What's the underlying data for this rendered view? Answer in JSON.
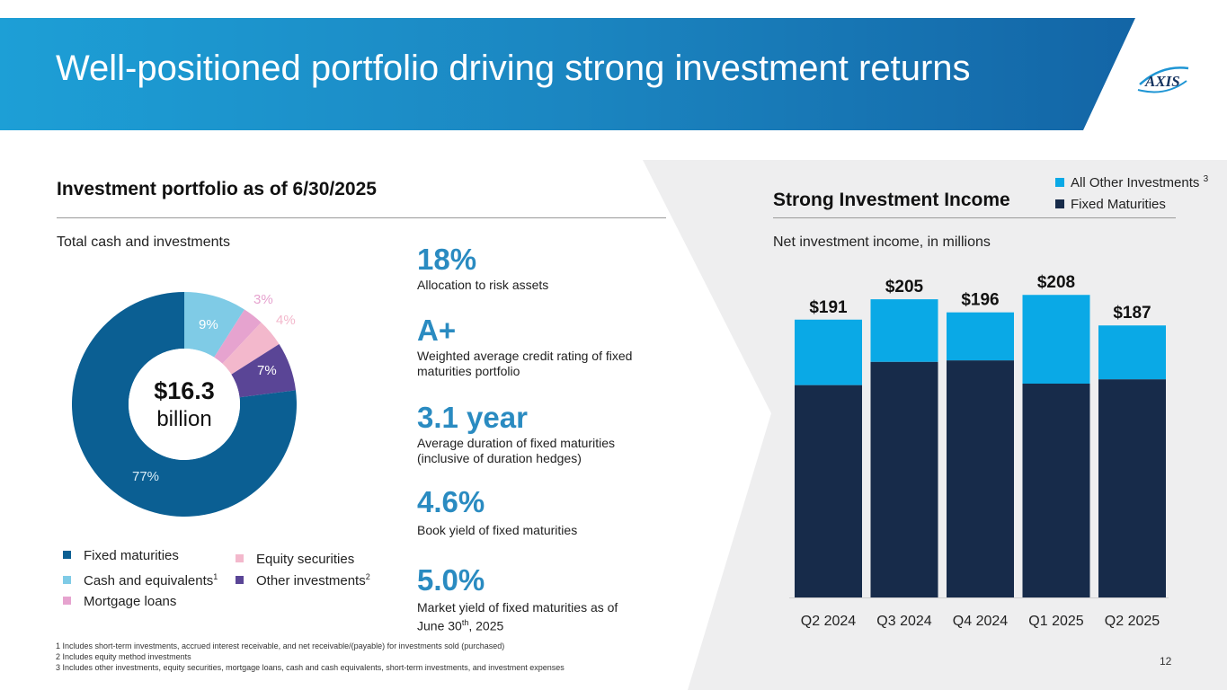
{
  "header": {
    "title": "Well-positioned portfolio driving strong investment returns",
    "logo_text": "AXIS"
  },
  "left": {
    "heading": "Investment portfolio as of 6/30/2025",
    "subheading": "Total cash and investments",
    "center_value": "$16.3",
    "center_unit": "billion",
    "donut_labels": {
      "fixed": "77%",
      "cash": "9%",
      "mortgage": "3%",
      "equity": "4%",
      "other": "7%"
    },
    "legend": {
      "fixed": "Fixed maturities",
      "cash": "Cash and equivalents",
      "cash_sup": "1",
      "mortgage": "Mortgage loans",
      "equity": "Equity securities",
      "other": "Other investments",
      "other_sup": "2"
    }
  },
  "kpis": [
    {
      "value": "18%",
      "desc": "Allocation to risk assets"
    },
    {
      "value": "A+",
      "desc": "Weighted average credit rating of fixed maturities portfolio"
    },
    {
      "value": "3.1 year",
      "desc": "Average duration of fixed maturities (inclusive of duration hedges)"
    },
    {
      "value": "4.6%",
      "desc": "Book yield of fixed maturities"
    },
    {
      "value": "5.0%",
      "desc_pre": "Market yield of fixed maturities as of June 30",
      "desc_sup": "th",
      "desc_post": ", 2025"
    }
  ],
  "right": {
    "heading": "Strong Investment Income",
    "subheading": "Net investment income, in millions",
    "legend_other": "All Other Investments",
    "legend_other_sup": "3",
    "legend_fixed": "Fixed Maturities"
  },
  "colors": {
    "fixed_donut": "#0b5f93",
    "cash": "#7fcbe6",
    "mortgage": "#e6a3cf",
    "equity": "#f3b8cc",
    "other": "#5a4596",
    "bar_fixed": "#172b4a",
    "bar_other": "#0aa9e6"
  },
  "chart_data": [
    {
      "type": "pie",
      "title": "Total cash and investments",
      "center_label": "$16.3 billion",
      "categories": [
        "Fixed maturities",
        "Cash and equivalents",
        "Mortgage loans",
        "Equity securities",
        "Other investments"
      ],
      "values": [
        77,
        9,
        3,
        4,
        7
      ],
      "unit": "%"
    },
    {
      "type": "bar",
      "stacked": true,
      "title": "Net investment income, in millions",
      "categories": [
        "Q2 2024",
        "Q3 2024",
        "Q4 2024",
        "Q1 2025",
        "Q2 2025"
      ],
      "series": [
        {
          "name": "Fixed Maturities",
          "values": [
            146,
            162,
            163,
            147,
            150
          ]
        },
        {
          "name": "All Other Investments",
          "values": [
            45,
            43,
            33,
            61,
            37
          ]
        }
      ],
      "totals": [
        191,
        205,
        196,
        208,
        187
      ],
      "total_labels": [
        "$191",
        "$205",
        "$196",
        "$208",
        "$187"
      ],
      "ylim": [
        0,
        210
      ]
    }
  ],
  "footnotes": [
    "1 Includes short-term investments, accrued interest receivable, and net receivable/(payable) for investments sold (purchased)",
    "2 Includes equity method investments",
    "3 Includes other investments, equity securities, mortgage loans, cash and cash equivalents, short-term investments, and investment expenses"
  ],
  "page_number": "12"
}
